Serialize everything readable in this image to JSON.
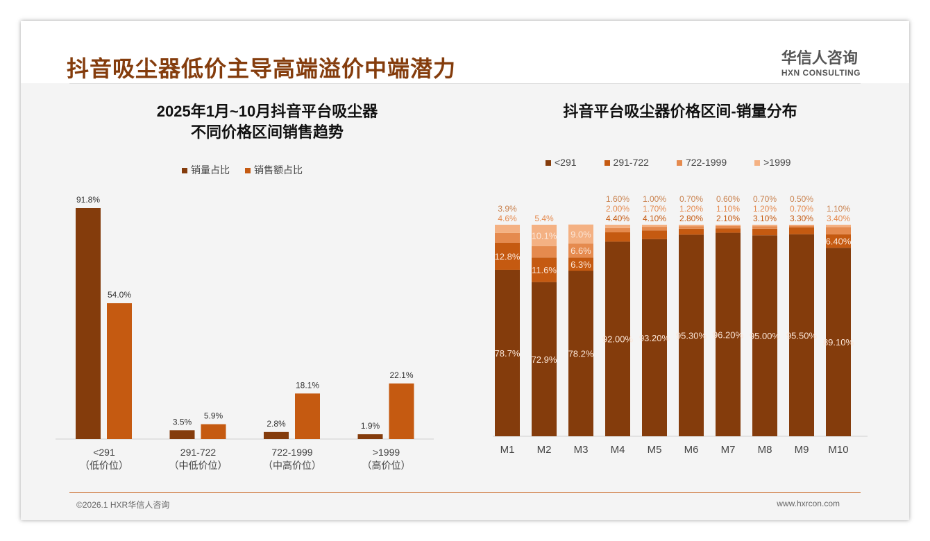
{
  "header": {
    "title": "抖音吸尘器低价主导高端溢价中端潜力",
    "logo_cn": "华信人咨询",
    "logo_en": "HXN CONSULTING"
  },
  "footer": {
    "copyright": "©2026.1 HXR华信人咨询",
    "website": "www.hxrcon.com"
  },
  "colors": {
    "dark": "#843c0c",
    "orange": "#c55a11",
    "mid": "#e58a4e",
    "light": "#f4b183"
  },
  "chart_data": [
    {
      "type": "bar",
      "title": "2025年1月~10月抖音平台吸尘器",
      "subtitle": "不同价格区间销售趋势",
      "categories": [
        "<291",
        "291-722",
        "722-1999",
        ">1999"
      ],
      "category_sublabels": [
        "（低价位）",
        "（中低价位）",
        "（中高价位）",
        "（高价位）"
      ],
      "series": [
        {
          "name": "销量占比",
          "values": [
            91.8,
            3.5,
            2.8,
            1.9
          ],
          "labels": [
            "91.8%",
            "3.5%",
            "2.8%",
            "1.9%"
          ]
        },
        {
          "name": "销售额占比",
          "values": [
            54.0,
            5.9,
            18.1,
            22.1
          ],
          "labels": [
            "54.0%",
            "5.9%",
            "18.1%",
            "22.1%"
          ]
        }
      ],
      "ylim": [
        0,
        100
      ],
      "legend": "top"
    },
    {
      "type": "bar",
      "stacked": true,
      "title": "抖音平台吸尘器价格区间-销量分布",
      "categories": [
        "M1",
        "M2",
        "M3",
        "M4",
        "M5",
        "M6",
        "M7",
        "M8",
        "M9",
        "M10"
      ],
      "series": [
        {
          "name": "<291",
          "values": [
            78.7,
            72.9,
            78.2,
            92.0,
            93.2,
            95.3,
            96.2,
            95.0,
            95.5,
            89.1
          ],
          "labels": [
            "78.7%",
            "72.9%",
            "78.2%",
            "92.00%",
            "93.20%",
            "95.30%",
            "96.20%",
            "95.00%",
            "95.50%",
            "89.10%"
          ]
        },
        {
          "name": "291-722",
          "values": [
            12.8,
            11.6,
            6.3,
            4.4,
            4.1,
            2.8,
            2.1,
            3.1,
            3.3,
            6.4
          ],
          "labels": [
            "12.8%",
            "11.6%",
            "6.3%",
            "4.40%",
            "4.10%",
            "2.80%",
            "2.10%",
            "3.10%",
            "3.30%",
            "6.40%"
          ]
        },
        {
          "name": "722-1999",
          "values": [
            4.6,
            5.4,
            6.6,
            2.0,
            1.7,
            1.2,
            1.1,
            1.2,
            0.7,
            3.4
          ],
          "labels": [
            "4.6%",
            "5.4%",
            "6.6%",
            "2.00%",
            "1.70%",
            "1.20%",
            "1.10%",
            "1.20%",
            "0.70%",
            "3.40%"
          ]
        },
        {
          "name": ">1999",
          "values": [
            3.9,
            10.1,
            9.0,
            1.6,
            1.0,
            0.7,
            0.6,
            0.7,
            0.5,
            1.1
          ],
          "labels": [
            "3.9%",
            "10.1%",
            "9.0%",
            "1.60%",
            "1.00%",
            "0.70%",
            "0.60%",
            "0.70%",
            "0.50%",
            "1.10%"
          ]
        }
      ],
      "ylim": [
        0,
        100
      ],
      "legend": "top"
    }
  ]
}
